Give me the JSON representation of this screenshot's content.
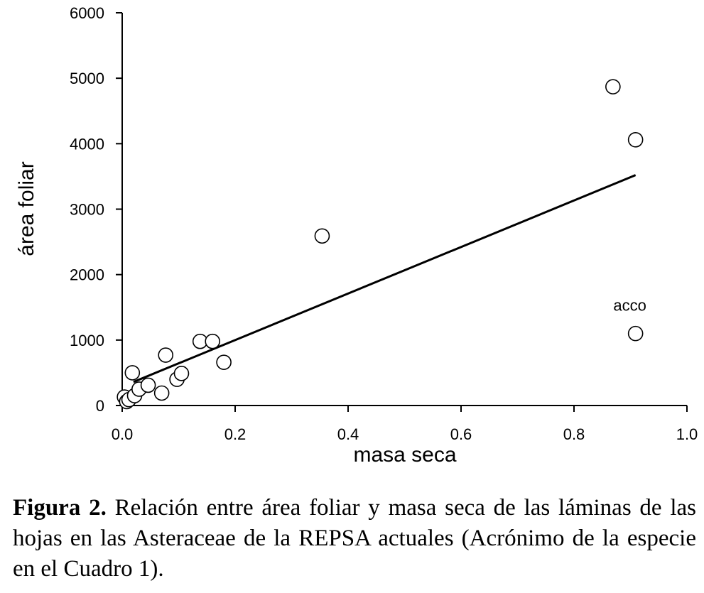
{
  "chart_data": {
    "type": "scatter",
    "xlabel": "masa seca",
    "ylabel": "área foliar",
    "xlim": [
      0.0,
      1.0
    ],
    "ylim": [
      0,
      6000
    ],
    "x_ticks": [
      "0.0",
      "0.2",
      "0.4",
      "0.6",
      "0.8",
      "1.0"
    ],
    "y_ticks": [
      "0",
      "1000",
      "2000",
      "3000",
      "4000",
      "5000",
      "6000"
    ],
    "grid": false,
    "points": [
      {
        "x": 0.004,
        "y": 130
      },
      {
        "x": 0.008,
        "y": 60
      },
      {
        "x": 0.012,
        "y": 90
      },
      {
        "x": 0.018,
        "y": 500
      },
      {
        "x": 0.022,
        "y": 150
      },
      {
        "x": 0.03,
        "y": 250
      },
      {
        "x": 0.046,
        "y": 310
      },
      {
        "x": 0.07,
        "y": 190
      },
      {
        "x": 0.077,
        "y": 770
      },
      {
        "x": 0.097,
        "y": 400
      },
      {
        "x": 0.105,
        "y": 490
      },
      {
        "x": 0.138,
        "y": 980
      },
      {
        "x": 0.16,
        "y": 980
      },
      {
        "x": 0.18,
        "y": 660
      },
      {
        "x": 0.354,
        "y": 2590
      },
      {
        "x": 0.869,
        "y": 4870
      },
      {
        "x": 0.909,
        "y": 4060
      },
      {
        "x": 0.909,
        "y": 1100,
        "label": "acco"
      }
    ],
    "fit_line": {
      "x": [
        0.02,
        0.909
      ],
      "y": [
        360,
        3520
      ]
    }
  },
  "caption": {
    "label": "Figura 2.",
    "text": " Relación entre área foliar y masa seca de las láminas de las hojas en las Asteraceae de la REPSA actuales (Acrónimo de la especie en el Cuadro 1)."
  }
}
